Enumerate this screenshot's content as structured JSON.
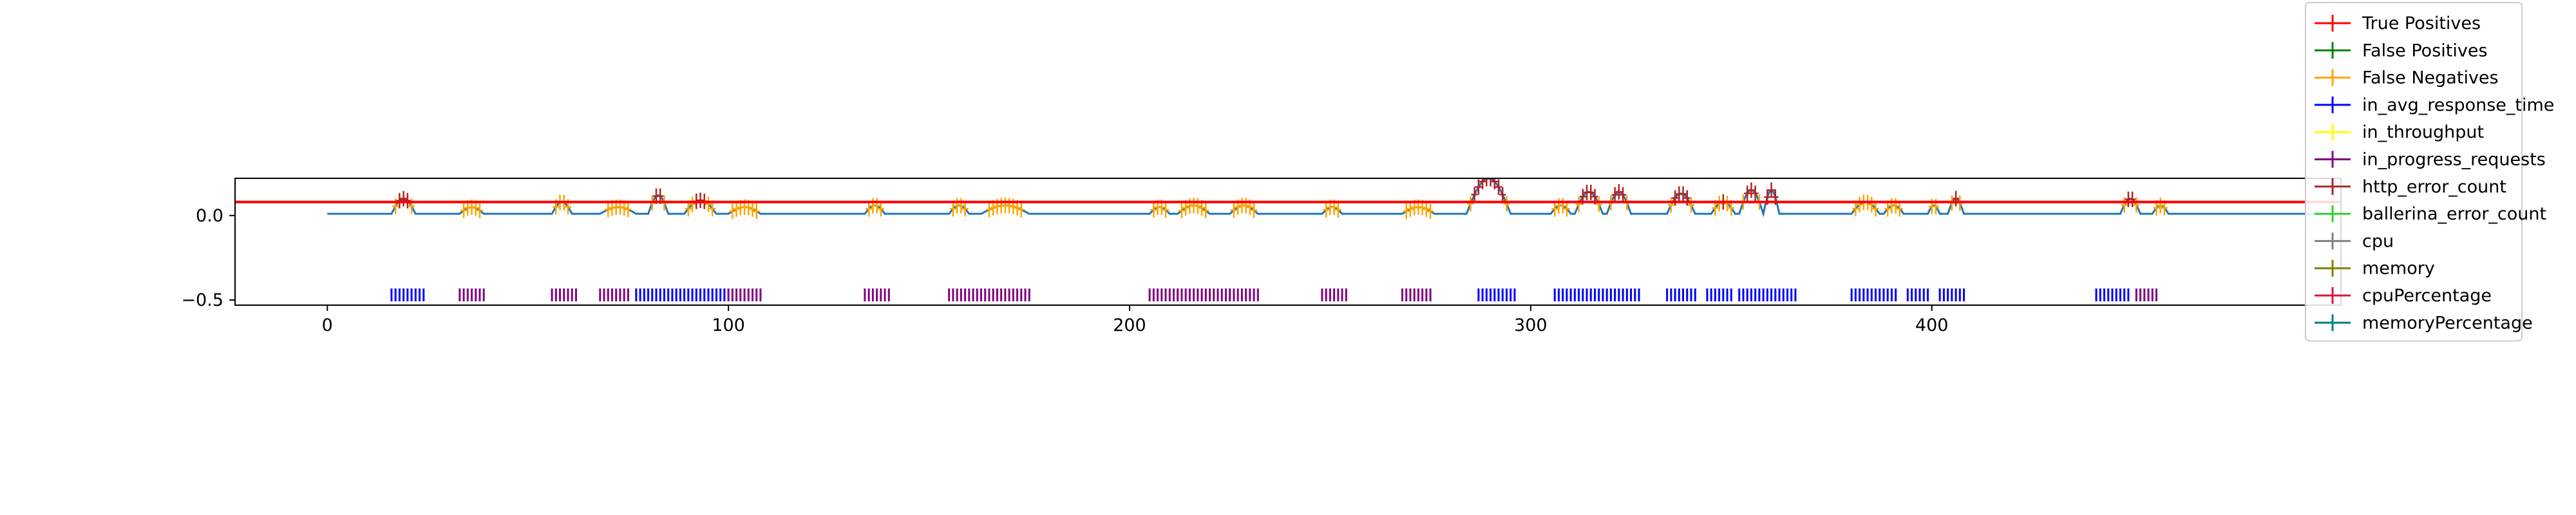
{
  "chart_data": {
    "type": "line",
    "title": "",
    "xlabel": "",
    "ylabel": "",
    "xlim": [
      -23,
      502
    ],
    "ylim": [
      -0.53,
      0.22
    ],
    "xticks": [
      0,
      100,
      200,
      300,
      400
    ],
    "xtick_labels": [
      "0",
      "100",
      "200",
      "300",
      "400"
    ],
    "yticks": [
      0.0,
      -0.5
    ],
    "ytick_labels": [
      "0.0",
      "−0.5"
    ],
    "threshold": {
      "y": 0.08,
      "color": "#ff0000"
    },
    "metric_line": {
      "color": "#1f77b4",
      "x_range": [
        0,
        499
      ],
      "baseline": 0.01,
      "bumps": [
        [
          16,
          22,
          0.1
        ],
        [
          33,
          39,
          0.05
        ],
        [
          56,
          61,
          0.08
        ],
        [
          68,
          77,
          0.05
        ],
        [
          80,
          85,
          0.12
        ],
        [
          89,
          97,
          0.09
        ],
        [
          100,
          108,
          0.05
        ],
        [
          134,
          139,
          0.06
        ],
        [
          155,
          160,
          0.06
        ],
        [
          163,
          175,
          0.06
        ],
        [
          205,
          210,
          0.05
        ],
        [
          212,
          220,
          0.06
        ],
        [
          225,
          232,
          0.06
        ],
        [
          248,
          253,
          0.05
        ],
        [
          268,
          276,
          0.05
        ],
        [
          284,
          295,
          0.22
        ],
        [
          305,
          310,
          0.06
        ],
        [
          311,
          318,
          0.14
        ],
        [
          319,
          325,
          0.14
        ],
        [
          334,
          341,
          0.13
        ],
        [
          345,
          351,
          0.08
        ],
        [
          352,
          358,
          0.15
        ],
        [
          358,
          362,
          0.15
        ],
        [
          380,
          387,
          0.08
        ],
        [
          388,
          393,
          0.06
        ],
        [
          399,
          402,
          0.06
        ],
        [
          404,
          408,
          0.1
        ],
        [
          447,
          452,
          0.1
        ],
        [
          455,
          459,
          0.06
        ]
      ]
    },
    "anomaly_segments": [
      {
        "x": [
          16,
          24
        ],
        "color": "#0000ff"
      },
      {
        "x": [
          33,
          39
        ],
        "color": "#800080"
      },
      {
        "x": [
          56,
          62
        ],
        "color": "#800080"
      },
      {
        "x": [
          68,
          75
        ],
        "color": "#800080"
      },
      {
        "x": [
          77,
          88
        ],
        "color": "#0000ff"
      },
      {
        "x": [
          89,
          99
        ],
        "color": "#0000ff"
      },
      {
        "x": [
          100,
          108
        ],
        "color": "#800080"
      },
      {
        "x": [
          134,
          140
        ],
        "color": "#800080"
      },
      {
        "x": [
          155,
          161
        ],
        "color": "#800080"
      },
      {
        "x": [
          162,
          175
        ],
        "color": "#800080"
      },
      {
        "x": [
          205,
          212
        ],
        "color": "#800080"
      },
      {
        "x": [
          212,
          225
        ],
        "color": "#800080"
      },
      {
        "x": [
          225,
          232
        ],
        "color": "#800080"
      },
      {
        "x": [
          248,
          254
        ],
        "color": "#800080"
      },
      {
        "x": [
          268,
          275
        ],
        "color": "#800080"
      },
      {
        "x": [
          287,
          296
        ],
        "color": "#0000ff"
      },
      {
        "x": [
          306,
          311
        ],
        "color": "#0000ff"
      },
      {
        "x": [
          312,
          327
        ],
        "color": "#0000ff"
      },
      {
        "x": [
          334,
          341
        ],
        "color": "#0000ff"
      },
      {
        "x": [
          344,
          350
        ],
        "color": "#0000ff"
      },
      {
        "x": [
          352,
          366
        ],
        "color": "#0000ff"
      },
      {
        "x": [
          380,
          391
        ],
        "color": "#0000ff"
      },
      {
        "x": [
          394,
          399
        ],
        "color": "#0000ff"
      },
      {
        "x": [
          402,
          408
        ],
        "color": "#0000ff"
      },
      {
        "x": [
          441,
          449
        ],
        "color": "#0000ff"
      },
      {
        "x": [
          451,
          456
        ],
        "color": "#800080"
      }
    ],
    "segment_y": -0.5,
    "legend": {
      "placement": "top-right",
      "entries": [
        {
          "label": "True Positives",
          "color": "#ff0000"
        },
        {
          "label": "False Positives",
          "color": "#008000"
        },
        {
          "label": "False Negatives",
          "color": "#ffa500"
        },
        {
          "label": "in_avg_response_time",
          "color": "#0000ff"
        },
        {
          "label": "in_throughput",
          "color": "#ffff00"
        },
        {
          "label": "in_progress_requests",
          "color": "#800080"
        },
        {
          "label": "http_error_count",
          "color": "#a52a2a"
        },
        {
          "label": "ballerina_error_count",
          "color": "#32cd32"
        },
        {
          "label": "cpu",
          "color": "#808080"
        },
        {
          "label": "memory",
          "color": "#808000"
        },
        {
          "label": "cpuPercentage",
          "color": "#dc143c"
        },
        {
          "label": "memoryPercentage",
          "color": "#008080"
        }
      ]
    }
  }
}
